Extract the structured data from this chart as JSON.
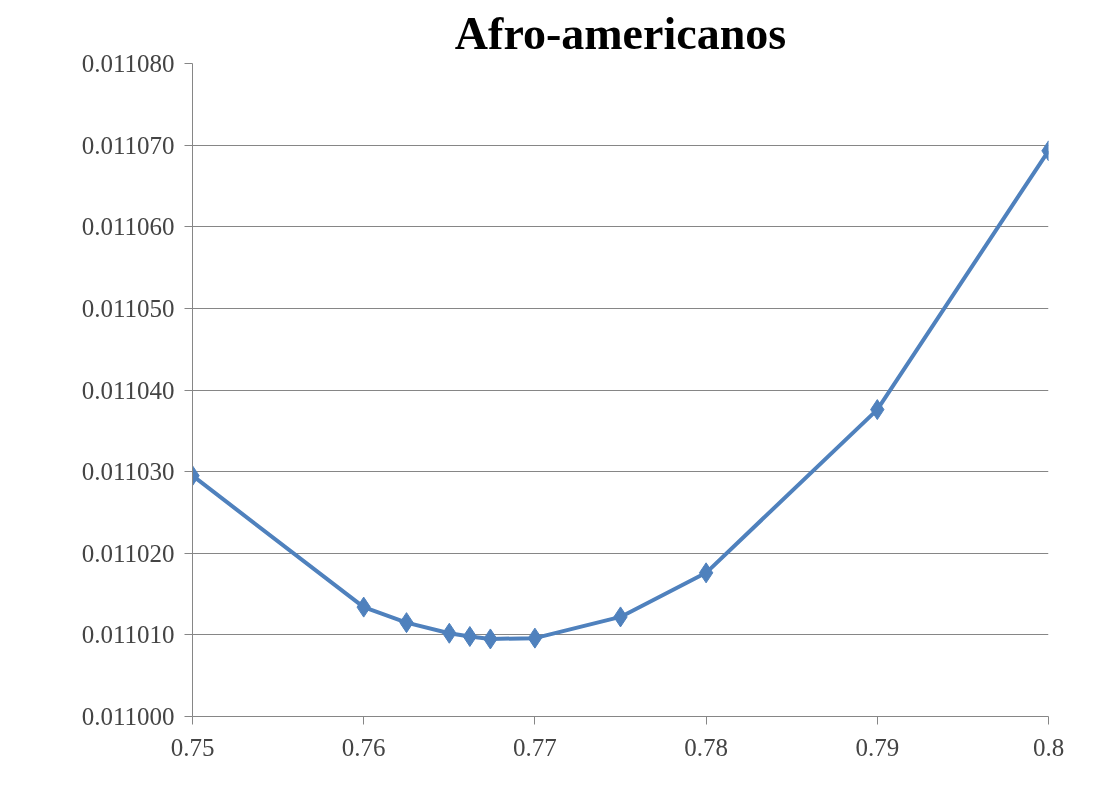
{
  "chart_data": {
    "type": "line",
    "title": "Afro-americanos",
    "x": [
      0.75,
      0.76,
      0.7625,
      0.765,
      0.7662,
      0.7674,
      0.77,
      0.775,
      0.78,
      0.79,
      0.8
    ],
    "series": [
      {
        "color": "#4f81bd",
        "values": [
          0.0110295,
          0.0110134,
          0.0110115,
          0.0110102,
          0.0110098,
          0.0110095,
          0.0110096,
          0.0110122,
          0.0110176,
          0.0110376,
          0.0110693
        ]
      }
    ],
    "xlim": [
      0.75,
      0.8
    ],
    "xticks": [
      0.75,
      0.76,
      0.77,
      0.78,
      0.79,
      0.8
    ],
    "ylim": [
      0.011,
      0.01108
    ],
    "yticks": [
      {
        "value": 0.011,
        "label": "0.011000"
      },
      {
        "value": 0.01101,
        "label": "0.011010"
      },
      {
        "value": 0.01102,
        "label": "0.011020"
      },
      {
        "value": 0.01103,
        "label": "0.011030"
      },
      {
        "value": 0.01104,
        "label": "0.011040"
      },
      {
        "value": 0.01105,
        "label": "0.011050"
      },
      {
        "value": 0.01106,
        "label": "0.011060"
      },
      {
        "value": 0.01107,
        "label": "0.011070"
      },
      {
        "value": 0.01108,
        "label": "0.011080"
      }
    ],
    "grid": "y",
    "marker": "diamond",
    "line_style": "solid"
  }
}
